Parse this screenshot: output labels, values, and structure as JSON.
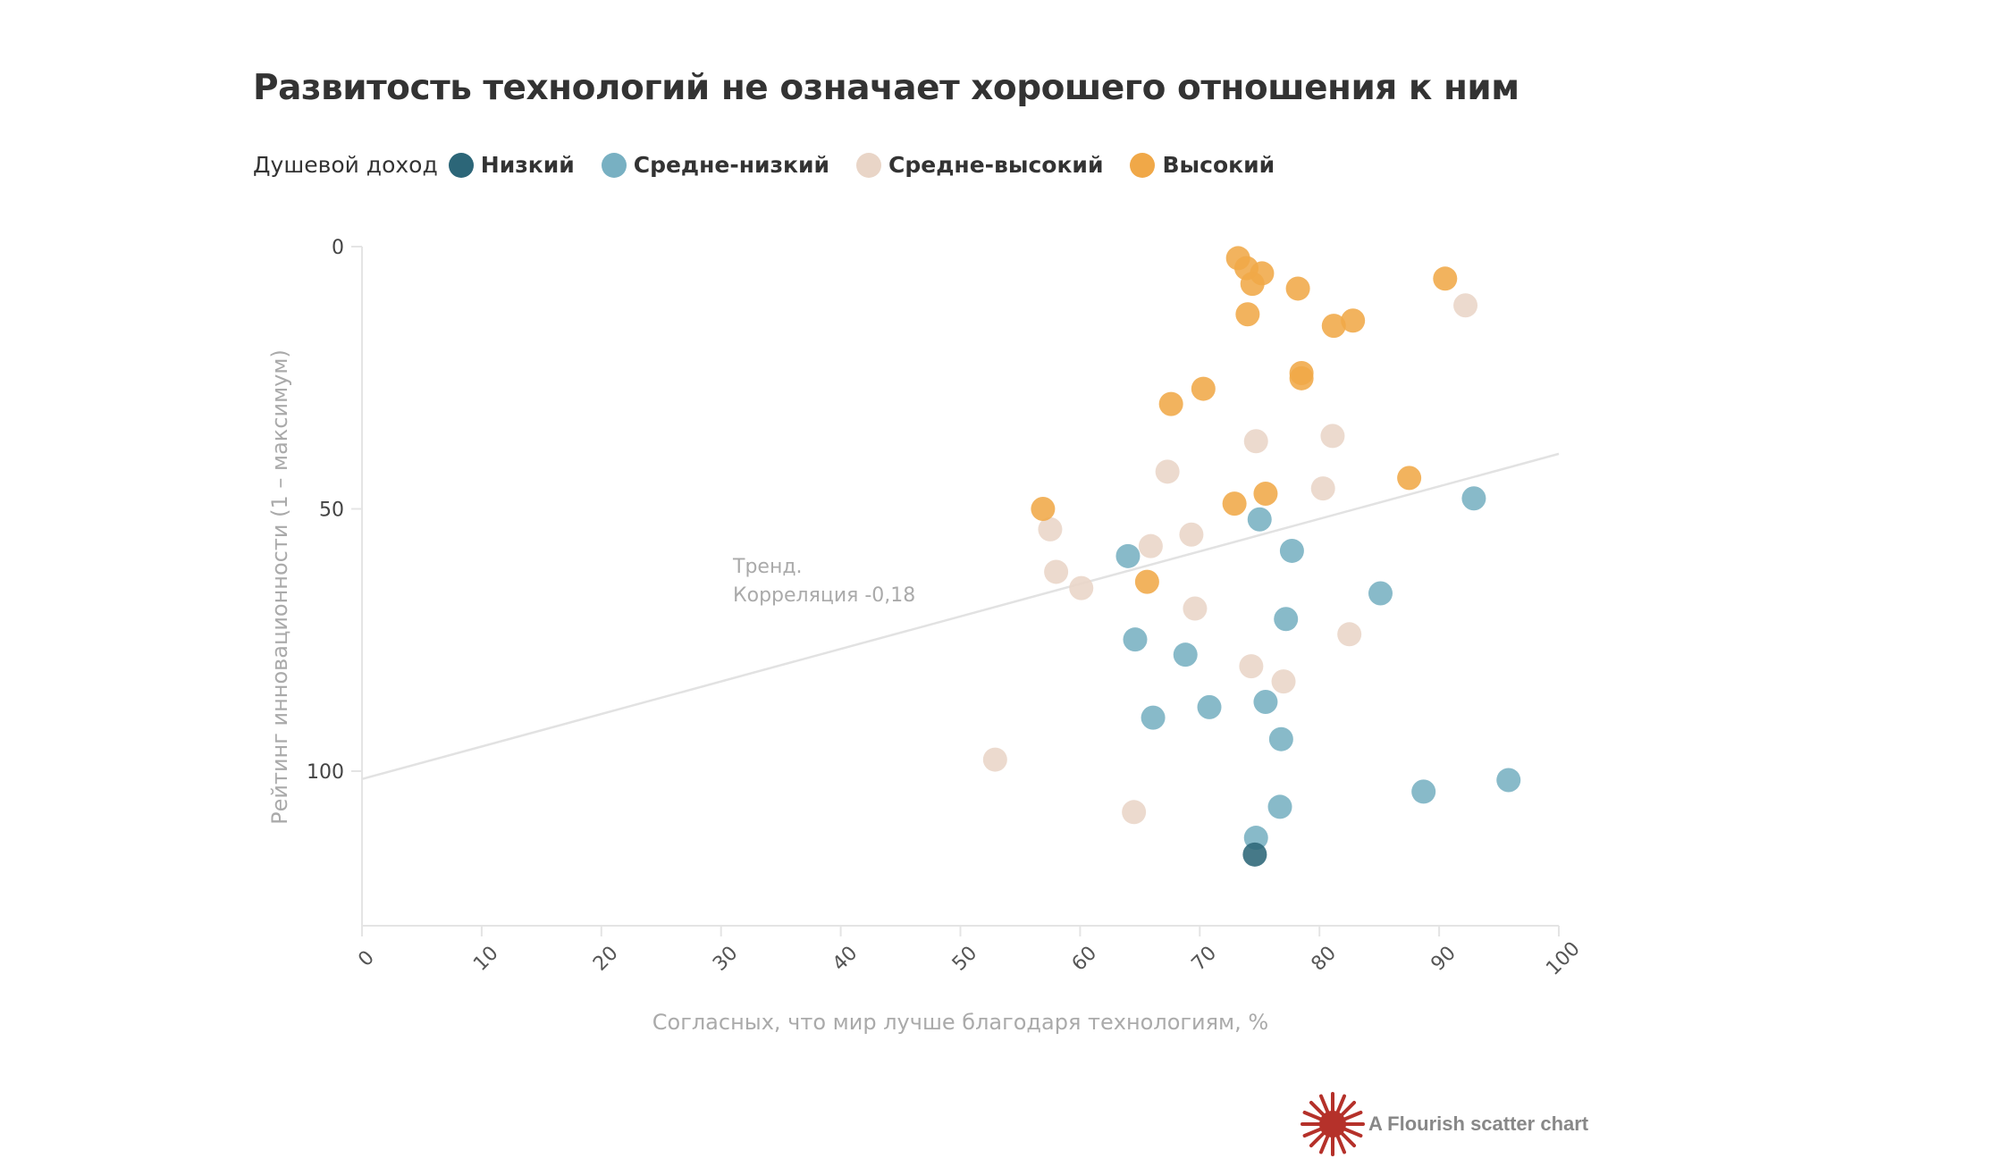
{
  "header": {
    "title": "Развитость технологий не означает хорошего отношения к ним"
  },
  "legend": {
    "title": "Душевой доход",
    "items": [
      {
        "label": "Низкий",
        "color": "#2c6678"
      },
      {
        "label": "Средне-низкий",
        "color": "#78b0c2"
      },
      {
        "label": "Средне-высокий",
        "color": "#e9d5c7"
      },
      {
        "label": "Высокий",
        "color": "#f0a848"
      }
    ]
  },
  "annotation": {
    "line1": "Тренд.",
    "line2": "Корреляция -0,18"
  },
  "credit": {
    "text": "A Flourish scatter chart",
    "icon": "flourish-logo-icon",
    "color": "#b5312a"
  },
  "chart_data": {
    "type": "scatter",
    "title": "Развитость технологий не означает хорошего отношения к ним",
    "xlabel": "Согласных, что мир лучше благодаря технологиям, %",
    "ylabel": "Рейтинг инновационности (1 – максимум)",
    "xlim": [
      0,
      100
    ],
    "ylim": [
      0,
      129
    ],
    "y_inverted": true,
    "x_ticks": [
      "0",
      "10",
      "20",
      "30",
      "40",
      "50",
      "60",
      "70",
      "80",
      "90",
      "100"
    ],
    "y_ticks": [
      "0",
      "50",
      "100"
    ],
    "grid": false,
    "legend_position": "top-left",
    "trend": {
      "x": [
        0,
        100
      ],
      "y": [
        101.5,
        39.5
      ],
      "correlation": "-0,18"
    },
    "series": [
      {
        "name": "Низкий",
        "color": "#2c6678",
        "points": [
          [
            74.6,
            115.9
          ]
        ]
      },
      {
        "name": "Средне-низкий",
        "color": "#78b0c2",
        "points": [
          [
            92.9,
            48.0
          ],
          [
            75.0,
            52.0
          ],
          [
            64.0,
            59.0
          ],
          [
            77.7,
            58.0
          ],
          [
            85.1,
            66.1
          ],
          [
            77.2,
            71.0
          ],
          [
            64.6,
            74.9
          ],
          [
            68.8,
            77.8
          ],
          [
            70.8,
            87.8
          ],
          [
            75.5,
            86.8
          ],
          [
            66.1,
            89.8
          ],
          [
            76.8,
            93.9
          ],
          [
            95.8,
            101.7
          ],
          [
            88.7,
            103.9
          ],
          [
            76.7,
            106.8
          ],
          [
            74.7,
            112.7
          ]
        ]
      },
      {
        "name": "Средне-высокий",
        "color": "#e9d5c7",
        "points": [
          [
            92.2,
            11.2
          ],
          [
            74.7,
            37.1
          ],
          [
            81.1,
            36.1
          ],
          [
            67.3,
            42.9
          ],
          [
            80.3,
            46.1
          ],
          [
            57.5,
            53.9
          ],
          [
            65.9,
            57.1
          ],
          [
            69.3,
            54.9
          ],
          [
            58.0,
            62.0
          ],
          [
            60.1,
            65.1
          ],
          [
            69.6,
            69.0
          ],
          [
            82.5,
            73.9
          ],
          [
            74.3,
            80.0
          ],
          [
            77.0,
            82.9
          ],
          [
            52.9,
            97.8
          ],
          [
            64.5,
            107.8
          ]
        ]
      },
      {
        "name": "Высокий",
        "color": "#f0a848",
        "points": [
          [
            73.2,
            2.2
          ],
          [
            73.9,
            4.1
          ],
          [
            75.2,
            5.1
          ],
          [
            74.4,
            7.1
          ],
          [
            78.2,
            8.0
          ],
          [
            90.5,
            6.1
          ],
          [
            74.0,
            12.9
          ],
          [
            81.2,
            15.1
          ],
          [
            82.8,
            14.1
          ],
          [
            78.5,
            24.1
          ],
          [
            78.5,
            25.1
          ],
          [
            70.3,
            27.1
          ],
          [
            67.6,
            30.0
          ],
          [
            56.9,
            50.0
          ],
          [
            72.9,
            49.0
          ],
          [
            75.5,
            47.1
          ],
          [
            87.5,
            44.1
          ],
          [
            65.6,
            63.9
          ]
        ]
      }
    ]
  }
}
